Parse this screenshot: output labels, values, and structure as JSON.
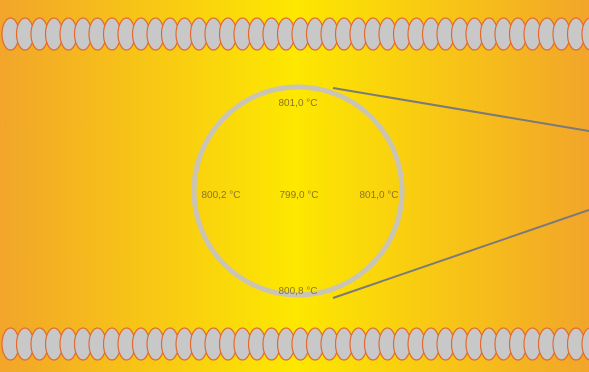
{
  "diagram": {
    "temperatures": {
      "top": "801,0 °C",
      "left": "800,2 °C",
      "center": "799,0 °C",
      "right": "801,0 °C",
      "bottom": "800,8 °C"
    },
    "colors": {
      "gradient_edge": "#f2a52a",
      "gradient_center": "#fde800",
      "coil_fill": "#c8c8c8",
      "coil_stroke": "#e26a2c",
      "circle_stroke": "#c9c4b4",
      "pointer_line": "#7a7a7a",
      "label_text": "#8a7428"
    }
  }
}
